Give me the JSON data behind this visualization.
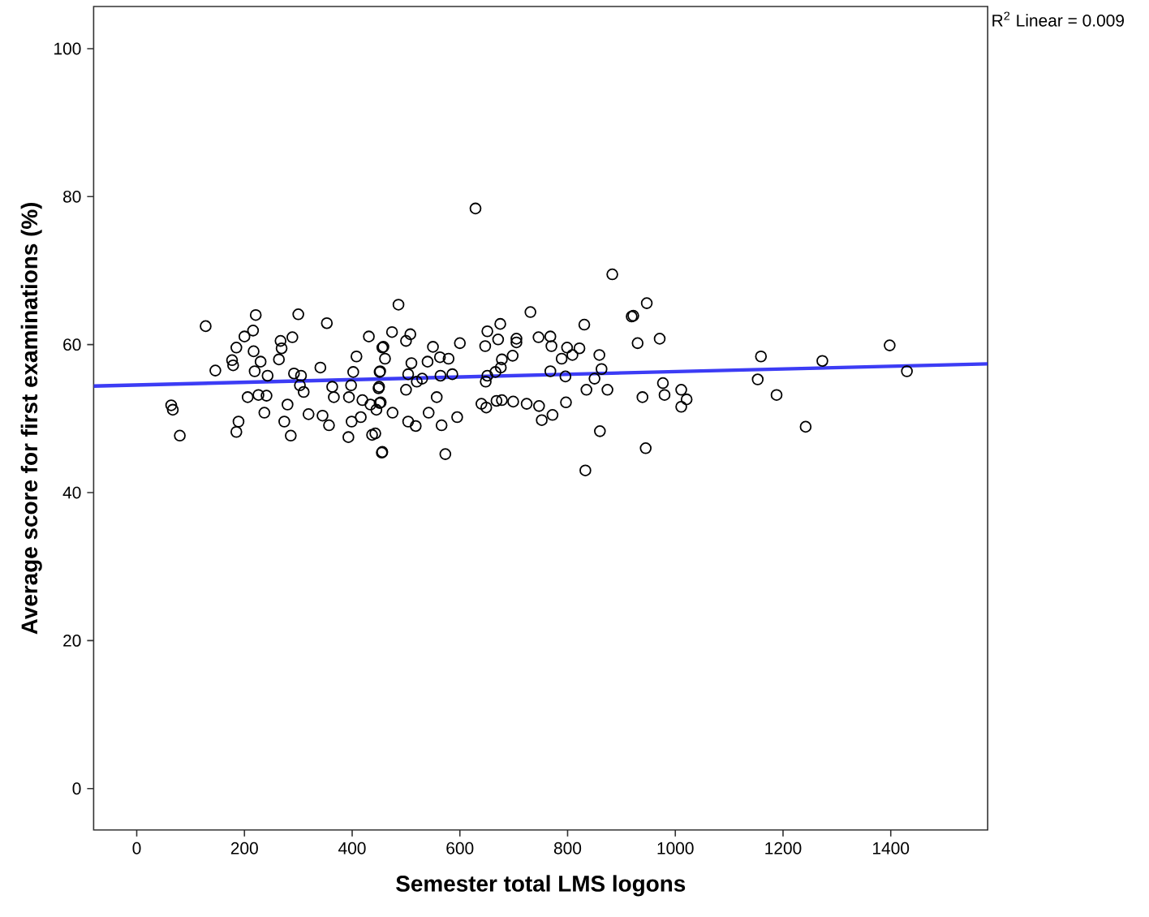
{
  "chart_data": {
    "type": "scatter",
    "xlabel": "Semester total LMS logons",
    "ylabel": "Average score for first examinations (%)",
    "annotations": [
      "R$^{2}$ Linear = 0.009"
    ],
    "xlim": [
      -80,
      1580
    ],
    "ylim": [
      -5.6,
      105.7
    ],
    "xticks": [
      0,
      200,
      400,
      600,
      800,
      1000,
      1200,
      1400
    ],
    "yticks": [
      0,
      20,
      40,
      60,
      80,
      100
    ],
    "marker": "circle",
    "series": [
      {
        "color": "#000000",
        "x": [
          128,
          221,
          300,
          353,
          216,
          200,
          185,
          267,
          289,
          269,
          217,
          177,
          179,
          230,
          264,
          146,
          219,
          243,
          292,
          305,
          341,
          408,
          431,
          456,
          402,
          451,
          64,
          67,
          80,
          206,
          226,
          241,
          237,
          189,
          185,
          280,
          274,
          286,
          303,
          310,
          319,
          345,
          357,
          366,
          394,
          398,
          419,
          434,
          451,
          399,
          416,
          393,
          437,
          455,
          363,
          450,
          486,
          474,
          508,
          500,
          458,
          461,
          550,
          600,
          563,
          579,
          510,
          540,
          452,
          504,
          530,
          564,
          586,
          520,
          449,
          500,
          453,
          445,
          475,
          557,
          542,
          595,
          504,
          518,
          566,
          443,
          456,
          573,
          651,
          675,
          647,
          671,
          705,
          705,
          731,
          698,
          678,
          746,
          768,
          770,
          831,
          799,
          822,
          809,
          789,
          859,
          883,
          919,
          651,
          666,
          676,
          648,
          768,
          796,
          863,
          850,
          835,
          874,
          640,
          649,
          668,
          678,
          699,
          724,
          747,
          752,
          772,
          797,
          860,
          833,
          629,
          947,
          922,
          930,
          971,
          977,
          1011,
          939,
          980,
          1021,
          1011,
          945,
          1159,
          1153,
          1188,
          1242,
          1273,
          1398,
          1430
        ],
        "values": [
          62.5,
          64.0,
          64.1,
          62.9,
          61.9,
          61.1,
          59.6,
          60.5,
          61.0,
          59.5,
          59.1,
          57.9,
          57.2,
          57.7,
          58.0,
          56.5,
          56.4,
          55.8,
          56.1,
          55.8,
          56.9,
          58.4,
          61.1,
          59.6,
          56.3,
          56.3,
          51.8,
          51.2,
          47.7,
          52.9,
          53.2,
          53.1,
          50.8,
          49.6,
          48.2,
          51.9,
          49.6,
          47.7,
          54.5,
          53.6,
          50.6,
          50.4,
          49.1,
          52.9,
          52.9,
          54.5,
          52.5,
          51.9,
          52.1,
          49.6,
          50.2,
          47.5,
          47.8,
          45.4,
          54.3,
          54.3,
          65.4,
          61.7,
          61.4,
          60.5,
          59.7,
          58.1,
          59.7,
          60.2,
          58.3,
          58.1,
          57.5,
          57.7,
          56.4,
          56.0,
          55.4,
          55.8,
          56.0,
          55.0,
          54.1,
          53.9,
          52.2,
          51.2,
          50.8,
          52.9,
          50.8,
          50.2,
          49.6,
          49.0,
          49.1,
          48.0,
          45.5,
          45.2,
          61.8,
          62.8,
          59.8,
          60.7,
          60.8,
          60.3,
          64.4,
          58.5,
          58.0,
          61.0,
          61.1,
          59.8,
          62.7,
          59.6,
          59.5,
          58.6,
          58.1,
          58.6,
          69.5,
          63.8,
          55.8,
          56.3,
          56.9,
          55.0,
          56.4,
          55.7,
          56.7,
          55.4,
          53.9,
          53.9,
          52.0,
          51.5,
          52.4,
          52.5,
          52.3,
          52.0,
          51.7,
          49.8,
          50.5,
          52.2,
          48.3,
          43.0,
          78.4,
          65.6,
          63.9,
          60.2,
          60.8,
          54.8,
          53.9,
          52.9,
          53.2,
          52.6,
          51.6,
          46.0,
          58.4,
          55.3,
          53.2,
          48.9,
          57.8,
          59.9,
          56.4
        ]
      },
      {
        "type": "line",
        "color": "#3c3cf5",
        "marker": "none",
        "x": [
          -80,
          1580
        ],
        "values": [
          54.4,
          57.4
        ]
      }
    ]
  }
}
